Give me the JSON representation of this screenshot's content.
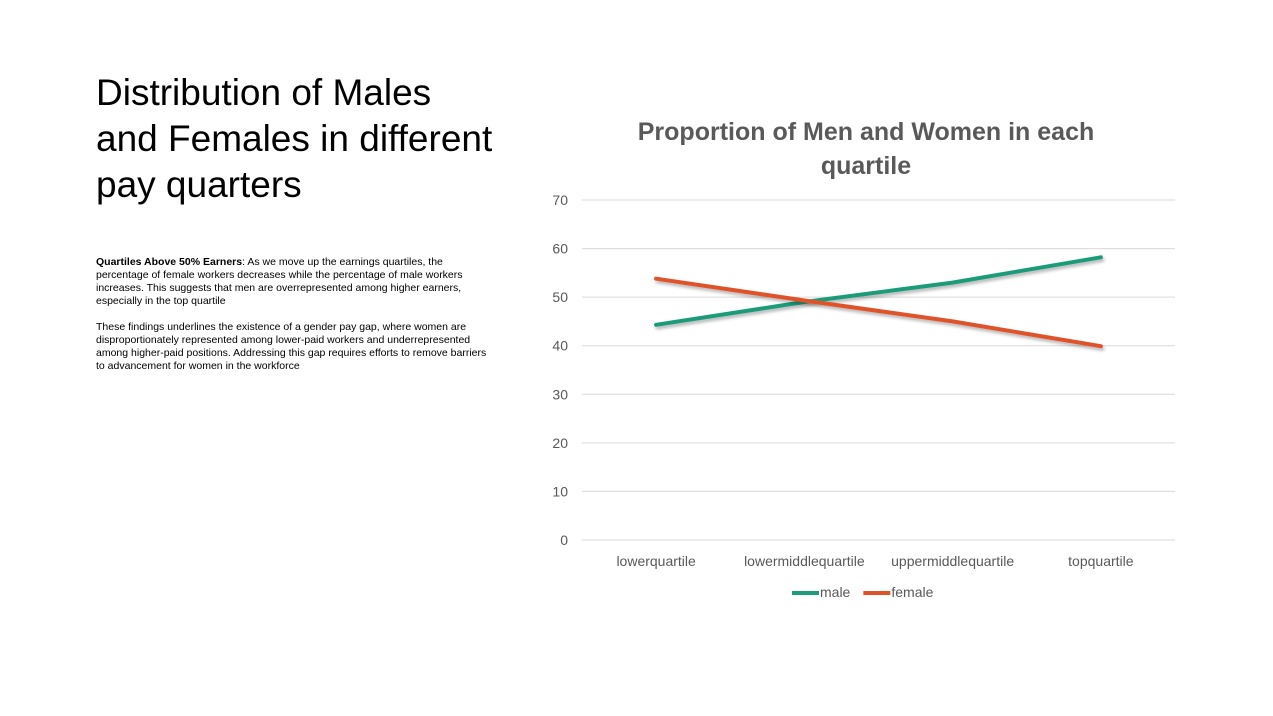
{
  "slide": {
    "title": "Distribution of Males and Females in different pay quarters",
    "paragraph1_lead": "Quartiles Above 50% Earners",
    "paragraph1_rest": ": As we move up the earnings quartiles, the percentage of female workers decreases while the percentage of male workers increases. This suggests that men are overrepresented among higher earners, especially in the top quartile",
    "paragraph2": "These findings underlines the existence of a gender pay gap, where women are disproportionately represented among lower-paid workers and underrepresented among higher-paid positions. Addressing this gap requires efforts to remove barriers to advancement for women in the workforce"
  },
  "chart_data": {
    "type": "line",
    "title_lines": [
      "Proportion of Men and Women in each",
      "quartile"
    ],
    "categories": [
      "lowerquartile",
      "lowermiddlequartile",
      "uppermiddlequartile",
      "topquartile"
    ],
    "series": [
      {
        "name": "male",
        "values": [
          44.3,
          49.0,
          53.0,
          58.2
        ],
        "color": "#1e9b7a"
      },
      {
        "name": "female",
        "values": [
          53.8,
          49.3,
          45.0,
          39.9
        ],
        "color": "#e0532a"
      }
    ],
    "ylim": [
      0,
      70
    ],
    "yticks": [
      0,
      10,
      20,
      30,
      40,
      50,
      60,
      70
    ],
    "grid": true,
    "legend_position": "bottom",
    "gridline_color": "#d9d9d9",
    "label_color": "#595959"
  }
}
